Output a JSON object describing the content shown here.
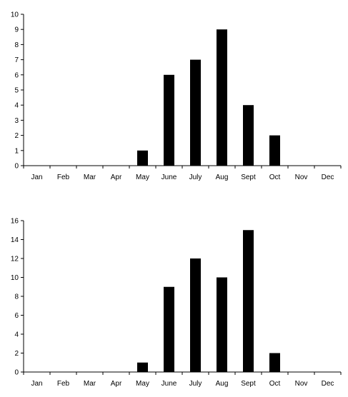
{
  "chart_data": [
    {
      "type": "bar",
      "categories": [
        "Jan",
        "Feb",
        "Mar",
        "Apr",
        "May",
        "June",
        "July",
        "Aug",
        "Sept",
        "Oct",
        "Nov",
        "Dec"
      ],
      "values": [
        0,
        0,
        0,
        0,
        1,
        6,
        7,
        9,
        4,
        2,
        0,
        0
      ],
      "ylim": [
        0,
        10
      ],
      "yticks": [
        0,
        1,
        2,
        3,
        4,
        5,
        6,
        7,
        8,
        9,
        10
      ],
      "grid": false,
      "colors": {
        "bar": "#000000"
      }
    },
    {
      "type": "bar",
      "categories": [
        "Jan",
        "Feb",
        "Mar",
        "Apr",
        "May",
        "June",
        "July",
        "Aug",
        "Sept",
        "Oct",
        "Nov",
        "Dec"
      ],
      "values": [
        0,
        0,
        0,
        0,
        1,
        9,
        12,
        10,
        15,
        2,
        0,
        0
      ],
      "ylim": [
        0,
        16
      ],
      "yticks": [
        0,
        2,
        4,
        6,
        8,
        10,
        12,
        14,
        16
      ],
      "grid": false,
      "colors": {
        "bar": "#000000"
      }
    }
  ]
}
